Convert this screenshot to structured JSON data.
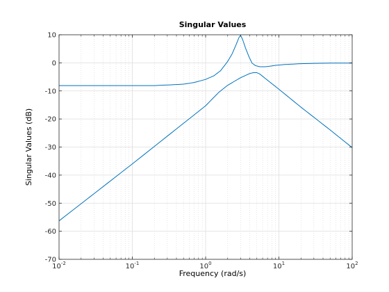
{
  "chart_data": {
    "type": "line",
    "title": "Singular Values",
    "xlabel": "Frequency (rad/s)",
    "ylabel": "Singular Values (dB)",
    "xscale": "log",
    "xlim": [
      0.01,
      100
    ],
    "ylim": [
      -70,
      10
    ],
    "grid": true,
    "x_ticks": [
      {
        "base": "10",
        "exp": "-2"
      },
      {
        "base": "10",
        "exp": "-1"
      },
      {
        "base": "10",
        "exp": "0"
      },
      {
        "base": "10",
        "exp": "1"
      },
      {
        "base": "10",
        "exp": "2"
      }
    ],
    "y_ticks": [
      "10",
      "0",
      "-10",
      "-20",
      "-30",
      "-40",
      "-50",
      "-60",
      "-70"
    ],
    "line_color": "#0072bd",
    "series": [
      {
        "x": [
          0.01,
          0.02,
          0.05,
          0.1,
          0.2,
          0.3,
          0.5,
          0.7,
          1.0,
          1.3,
          1.6,
          2.0,
          2.3,
          2.6,
          2.85,
          3.0,
          3.2,
          3.5,
          3.9,
          4.3,
          4.8,
          5.5,
          6.5,
          7.5,
          9,
          12,
          20,
          30,
          50,
          100
        ],
        "y": [
          -8.1,
          -8.1,
          -8.1,
          -8.1,
          -8.1,
          -7.9,
          -7.6,
          -7.0,
          -5.9,
          -4.6,
          -2.8,
          0.5,
          3.2,
          6.4,
          9.0,
          9.8,
          8.3,
          5.3,
          2.2,
          -0.1,
          -1.0,
          -1.4,
          -1.4,
          -1.2,
          -0.9,
          -0.6,
          -0.3,
          -0.2,
          -0.1,
          -0.1
        ]
      },
      {
        "x": [
          0.01,
          0.1,
          1.0,
          1.5,
          2.0,
          2.5,
          3.0,
          3.5,
          4.0,
          4.5,
          5.0,
          5.5,
          6.0,
          7.0,
          8.0,
          10,
          20,
          50,
          100
        ],
        "y": [
          -56.3,
          -36.0,
          -15.3,
          -10.6,
          -8.0,
          -6.5,
          -5.3,
          -4.5,
          -3.8,
          -3.5,
          -3.5,
          -4.0,
          -4.8,
          -6.2,
          -7.4,
          -9.4,
          -15.8,
          -23.9,
          -30.2
        ]
      }
    ]
  }
}
